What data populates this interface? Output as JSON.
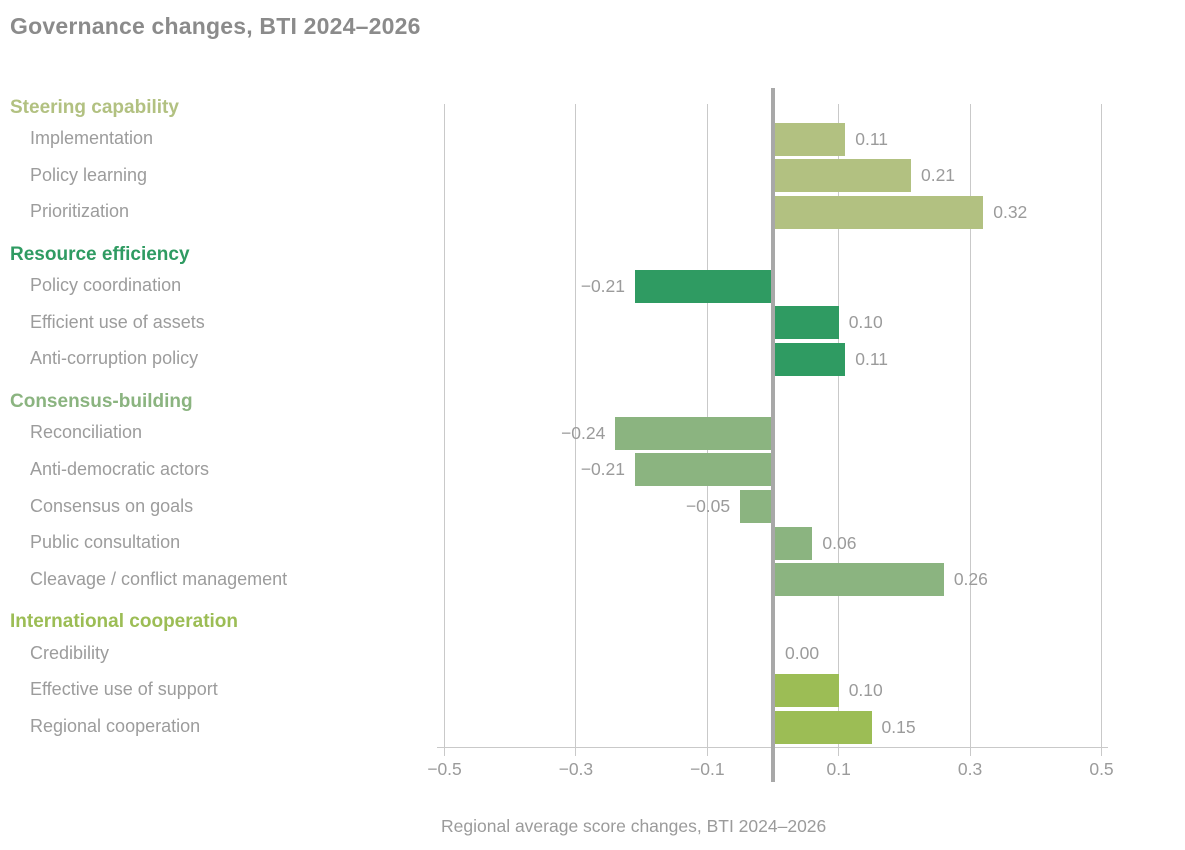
{
  "page": {
    "title": "Governance changes, BTI 2024–2026",
    "caption": "Regional average score changes, BTI 2024–2026"
  },
  "chart_data": {
    "type": "bar",
    "orientation": "horizontal",
    "title": "Governance changes, BTI 2024–2026",
    "xlabel": "Regional average score changes, BTI 2024–2026",
    "xlim": [
      -0.5,
      0.5
    ],
    "grid": true,
    "zero_line_emphasized": true,
    "ticks": [
      {
        "value": -0.5,
        "label": "−0.5"
      },
      {
        "value": -0.3,
        "label": "−0.3"
      },
      {
        "value": -0.1,
        "label": "−0.1"
      },
      {
        "value": 0.1,
        "label": "0.1"
      },
      {
        "value": 0.3,
        "label": "0.3"
      },
      {
        "value": 0.5,
        "label": "0.5"
      }
    ],
    "groups": [
      {
        "name": "Steering capability",
        "color": "#b2c181",
        "items": [
          {
            "label": "Implementation",
            "value": 0.11,
            "display": "0.11"
          },
          {
            "label": "Policy learning",
            "value": 0.21,
            "display": "0.21"
          },
          {
            "label": "Prioritization",
            "value": 0.32,
            "display": "0.32"
          }
        ]
      },
      {
        "name": "Resource efficiency",
        "color": "#2f9b62",
        "items": [
          {
            "label": "Policy coordination",
            "value": -0.21,
            "display": "−0.21"
          },
          {
            "label": "Efficient use of assets",
            "value": 0.1,
            "display": "0.10"
          },
          {
            "label": "Anti-corruption policy",
            "value": 0.11,
            "display": "0.11"
          }
        ]
      },
      {
        "name": "Consensus-building",
        "color": "#8bb480",
        "items": [
          {
            "label": "Reconciliation",
            "value": -0.24,
            "display": "−0.24"
          },
          {
            "label": "Anti-democratic actors",
            "value": -0.21,
            "display": "−0.21"
          },
          {
            "label": "Consensus on goals",
            "value": -0.05,
            "display": "−0.05"
          },
          {
            "label": "Public consultation",
            "value": 0.06,
            "display": "0.06"
          },
          {
            "label": "Cleavage / conflict management",
            "value": 0.26,
            "display": "0.26"
          }
        ]
      },
      {
        "name": "International cooperation",
        "color": "#9cbd55",
        "items": [
          {
            "label": "Credibility",
            "value": 0.0,
            "display": "0.00"
          },
          {
            "label": "Effective use of support",
            "value": 0.1,
            "display": "0.10"
          },
          {
            "label": "Regional cooperation",
            "value": 0.15,
            "display": "0.15"
          }
        ]
      }
    ]
  },
  "style": {
    "title_color": "#8b8b8b",
    "label_color": "#9c9c9c",
    "value_color": "#9b9b9b",
    "grid_color": "#c9c9c9",
    "zero_line_color": "#a8a8a8",
    "background": "#ffffff"
  }
}
